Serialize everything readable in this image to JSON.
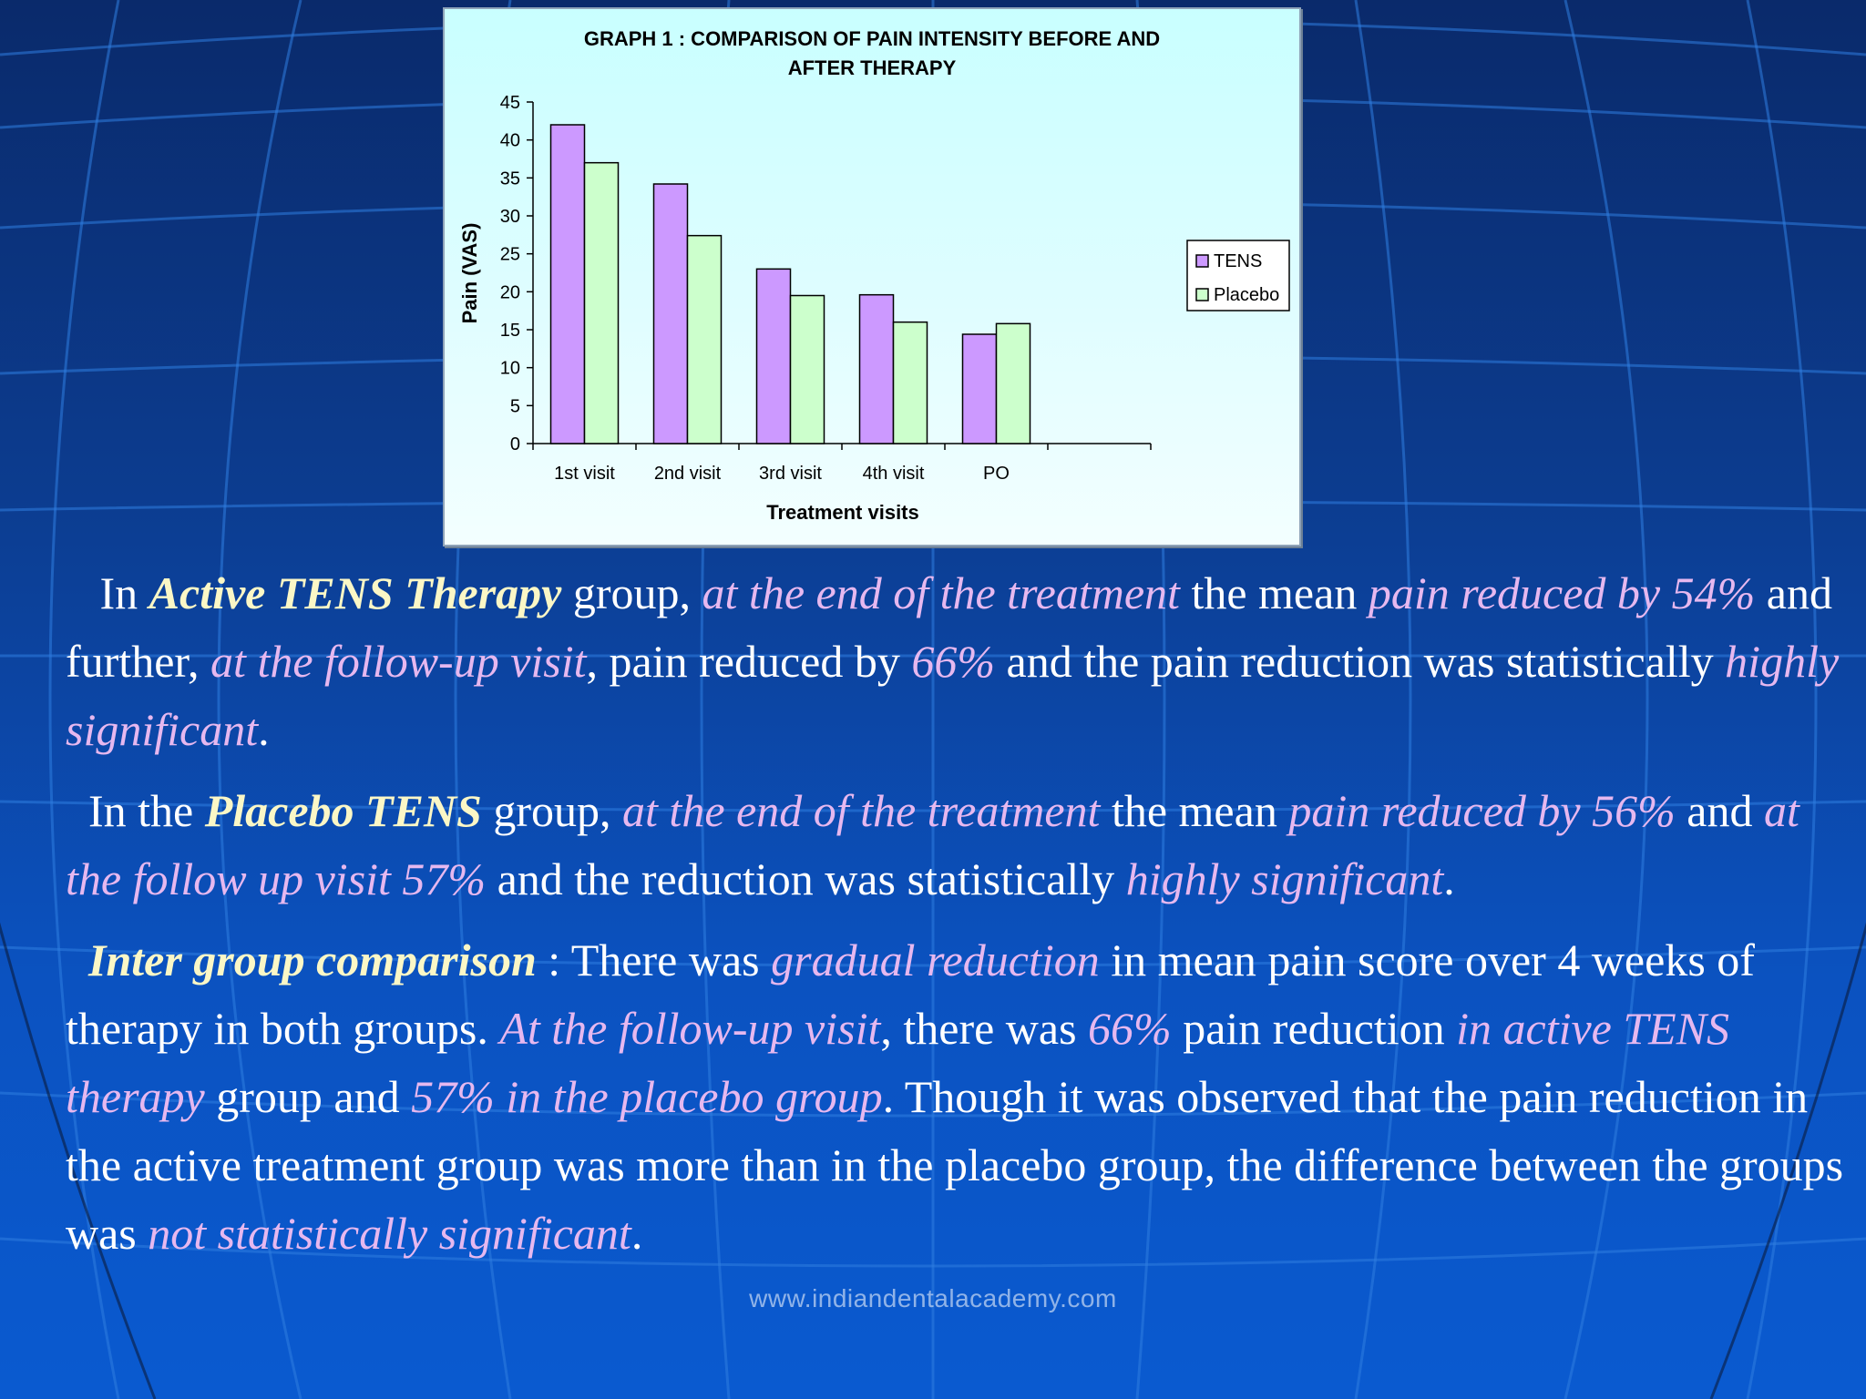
{
  "chart_data": {
    "type": "bar",
    "title": "GRAPH 1 : COMPARISON OF PAIN INTENSITY BEFORE AND AFTER THERAPY",
    "title_lines": [
      "GRAPH 1 : COMPARISON OF PAIN INTENSITY BEFORE AND",
      "AFTER THERAPY"
    ],
    "xlabel": "Treatment visits",
    "ylabel": "Pain (VAS)",
    "categories": [
      "1st visit",
      "2nd visit",
      "3rd visit",
      "4th visit",
      "PO"
    ],
    "series": [
      {
        "name": "TENS",
        "color": "#cc99ff",
        "values": [
          42,
          34.2,
          23,
          19.6,
          14.4
        ]
      },
      {
        "name": "Placebo",
        "color": "#ccffcc",
        "values": [
          37,
          27.4,
          19.5,
          16,
          15.8
        ]
      }
    ],
    "ylim": [
      0,
      45
    ],
    "yticks": [
      0,
      5,
      10,
      15,
      20,
      25,
      30,
      35,
      40,
      45
    ],
    "legend_position": "right",
    "grid": false
  },
  "paragraphs": [
    [
      {
        "t": "   In ",
        "s": "n"
      },
      {
        "t": "Active TENS Therapy",
        "s": "k"
      },
      {
        "t": " group, ",
        "s": "n"
      },
      {
        "t": "at the end of the treatment",
        "s": "p"
      },
      {
        "t": " the mean ",
        "s": "n"
      },
      {
        "t": "pain reduced by 54%",
        "s": "p"
      },
      {
        "t": " and further, ",
        "s": "n"
      },
      {
        "t": "at the follow-up visit",
        "s": "p"
      },
      {
        "t": ", pain reduced by ",
        "s": "n"
      },
      {
        "t": "66%",
        "s": "p"
      },
      {
        "t": " and the pain reduction was statistically ",
        "s": "n"
      },
      {
        "t": "highly significant",
        "s": "p"
      },
      {
        "t": ".",
        "s": "n"
      }
    ],
    [
      {
        "t": "  In the ",
        "s": "n"
      },
      {
        "t": "Placebo TENS",
        "s": "k"
      },
      {
        "t": " group, ",
        "s": "n"
      },
      {
        "t": "at the end of the treatment",
        "s": "p"
      },
      {
        "t": " the mean ",
        "s": "n"
      },
      {
        "t": "pain reduced by 56%",
        "s": "p"
      },
      {
        "t": " and ",
        "s": "n"
      },
      {
        "t": "at the follow up visit 57%",
        "s": "p"
      },
      {
        "t": " and the reduction was statistically ",
        "s": "n"
      },
      {
        "t": "highly significant",
        "s": "p"
      },
      {
        "t": ".",
        "s": "n"
      }
    ],
    [
      {
        "t": "  ",
        "s": "n"
      },
      {
        "t": "Inter group comparison",
        "s": "k"
      },
      {
        "t": " : There was ",
        "s": "n"
      },
      {
        "t": "gradual reduction",
        "s": "p"
      },
      {
        "t": " in mean pain score over 4 weeks of therapy in both groups. ",
        "s": "n"
      },
      {
        "t": "At the follow-up visit",
        "s": "p"
      },
      {
        "t": ", there was ",
        "s": "n"
      },
      {
        "t": "66%",
        "s": "p"
      },
      {
        "t": " pain reduction ",
        "s": "n"
      },
      {
        "t": "in active TENS therapy",
        "s": "p"
      },
      {
        "t": " group and ",
        "s": "n"
      },
      {
        "t": "57% in the placebo group",
        "s": "p"
      },
      {
        "t": ". Though it was observed that the pain reduction in the active treatment group was more than in the placebo group, the difference between the groups was ",
        "s": "n"
      },
      {
        "t": "not statistically significant",
        "s": "p"
      },
      {
        "t": ".",
        "s": "n"
      }
    ]
  ],
  "watermark": "www.indiandentalacademy.com",
  "colors": {
    "keyword": "#fbf7c6",
    "highlight": "#e6b8ef",
    "text": "#ffffff"
  }
}
